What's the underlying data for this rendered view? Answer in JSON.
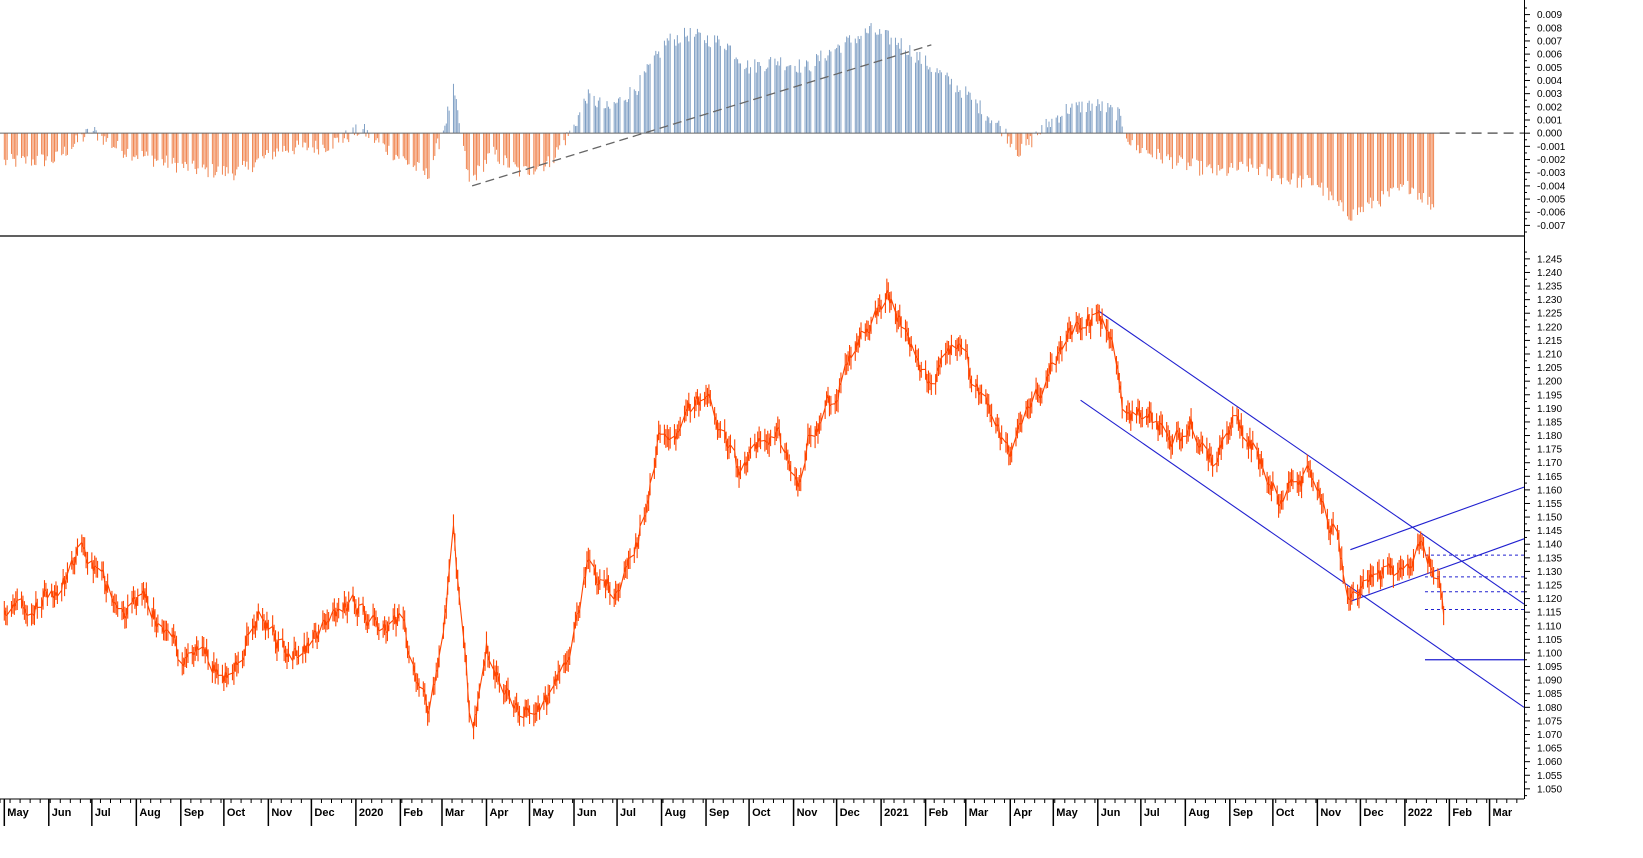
{
  "colors": {
    "price_line": "#ff4500",
    "osc_positive": "#7f9fc4",
    "osc_negative": "#f0844f",
    "channel_lines": "#2020d0",
    "osc_trendline": "#666666",
    "axis": "#000000"
  },
  "chart_data": [
    {
      "type": "bar",
      "panel": "oscillator",
      "y_ticks": [
        "0.009",
        "0.008",
        "0.007",
        "0.006",
        "0.005",
        "0.004",
        "0.003",
        "0.002",
        "0.001",
        "0.000",
        "-0.001",
        "-0.002",
        "-0.003",
        "-0.004",
        "-0.005",
        "-0.006",
        "-0.007"
      ],
      "ylim": [
        -0.0075,
        0.0095
      ],
      "zero_line": "dashed",
      "series": [
        {
          "knots": [
            [
              "2019-05-01",
              -0.0022
            ],
            [
              "2019-06-05",
              -0.002
            ],
            [
              "2019-07-01",
              0.0002
            ],
            [
              "2019-07-20",
              -0.0012
            ],
            [
              "2019-08-20",
              -0.0022
            ],
            [
              "2019-09-15",
              -0.0028
            ],
            [
              "2019-10-10",
              -0.003
            ],
            [
              "2019-11-10",
              -0.0012
            ],
            [
              "2019-12-10",
              -0.001
            ],
            [
              "2019-12-25",
              -0.0003
            ],
            [
              "2020-01-05",
              0.0003
            ],
            [
              "2020-01-20",
              -0.001
            ],
            [
              "2020-02-20",
              -0.0032
            ],
            [
              "2020-03-02",
              0.0003
            ],
            [
              "2020-03-09",
              0.0032
            ],
            [
              "2020-03-13",
              0.0008
            ],
            [
              "2020-03-20",
              -0.0038
            ],
            [
              "2020-04-05",
              -0.0015
            ],
            [
              "2020-04-25",
              -0.003
            ],
            [
              "2020-05-15",
              -0.0022
            ],
            [
              "2020-06-01",
              0.0005
            ],
            [
              "2020-06-10",
              0.0028
            ],
            [
              "2020-06-25",
              0.0018
            ],
            [
              "2020-07-15",
              0.0035
            ],
            [
              "2020-08-05",
              0.007
            ],
            [
              "2020-08-20",
              0.0075
            ],
            [
              "2020-09-15",
              0.0068
            ],
            [
              "2020-10-01",
              0.005
            ],
            [
              "2020-10-20",
              0.0055
            ],
            [
              "2020-11-10",
              0.005
            ],
            [
              "2020-12-01",
              0.0065
            ],
            [
              "2020-12-25",
              0.0078
            ],
            [
              "2021-01-15",
              0.0068
            ],
            [
              "2021-02-05",
              0.005
            ],
            [
              "2021-03-01",
              0.003
            ],
            [
              "2021-03-25",
              0.0005
            ],
            [
              "2021-04-08",
              -0.0015
            ],
            [
              "2021-04-25",
              0.0005
            ],
            [
              "2021-05-10",
              0.0018
            ],
            [
              "2021-05-30",
              0.0022
            ],
            [
              "2021-06-15",
              0.0015
            ],
            [
              "2021-06-25",
              -0.001
            ],
            [
              "2021-07-25",
              -0.0022
            ],
            [
              "2021-08-25",
              -0.003
            ],
            [
              "2021-09-15",
              -0.0025
            ],
            [
              "2021-10-10",
              -0.0035
            ],
            [
              "2021-11-01",
              -0.0038
            ],
            [
              "2021-11-15",
              -0.0055
            ],
            [
              "2021-11-25",
              -0.0062
            ],
            [
              "2021-12-15",
              -0.005
            ],
            [
              "2022-01-05",
              -0.004
            ],
            [
              "2022-01-15",
              -0.005
            ],
            [
              "2022-01-21",
              -0.0055
            ]
          ]
        }
      ],
      "trendlines": [
        {
          "from": [
            "2020-03-22",
            -0.004
          ],
          "to": [
            "2021-02-05",
            0.0067
          ]
        }
      ]
    },
    {
      "type": "line",
      "panel": "price",
      "y_ticks": [
        "1.245",
        "1.240",
        "1.235",
        "1.230",
        "1.225",
        "1.220",
        "1.215",
        "1.210",
        "1.205",
        "1.200",
        "1.195",
        "1.190",
        "1.185",
        "1.180",
        "1.175",
        "1.170",
        "1.165",
        "1.160",
        "1.155",
        "1.150",
        "1.145",
        "1.140",
        "1.135",
        "1.130",
        "1.125",
        "1.120",
        "1.115",
        "1.110",
        "1.105",
        "1.100",
        "1.095",
        "1.090",
        "1.085",
        "1.080",
        "1.075",
        "1.070",
        "1.065",
        "1.060",
        "1.055",
        "1.050"
      ],
      "ylim": [
        1.047,
        1.249
      ],
      "x_labels": [
        "May",
        "Jun",
        "Jul",
        "Aug",
        "Sep",
        "Oct",
        "Nov",
        "Dec",
        "2020",
        "Feb",
        "Mar",
        "Apr",
        "May",
        "Jun",
        "Jul",
        "Aug",
        "Sep",
        "Oct",
        "Nov",
        "Dec",
        "2021",
        "Feb",
        "Mar",
        "Apr",
        "May",
        "Jun",
        "Jul",
        "Aug",
        "Sep",
        "Oct",
        "Nov",
        "Dec",
        "2022",
        "Feb",
        "Mar"
      ],
      "x_label_dates": [
        "2019-05-01",
        "2019-06-01",
        "2019-07-01",
        "2019-08-01",
        "2019-09-01",
        "2019-10-01",
        "2019-11-01",
        "2019-12-01",
        "2020-01-01",
        "2020-02-01",
        "2020-03-01",
        "2020-04-01",
        "2020-05-01",
        "2020-06-01",
        "2020-07-01",
        "2020-08-01",
        "2020-09-01",
        "2020-10-01",
        "2020-11-01",
        "2020-12-01",
        "2021-01-01",
        "2021-02-01",
        "2021-03-01",
        "2021-04-01",
        "2021-05-01",
        "2021-06-01",
        "2021-07-01",
        "2021-08-01",
        "2021-09-01",
        "2021-10-01",
        "2021-11-01",
        "2021-12-01",
        "2022-01-01",
        "2022-02-01",
        "2022-03-01"
      ],
      "xlim": [
        "2019-04-28",
        "2022-03-25"
      ],
      "series": [
        {
          "knots": [
            [
              "2019-05-01",
              1.118
            ],
            [
              "2019-05-20",
              1.12
            ],
            [
              "2019-06-05",
              1.123
            ],
            [
              "2019-06-25",
              1.137
            ],
            [
              "2019-07-10",
              1.125
            ],
            [
              "2019-07-25",
              1.117
            ],
            [
              "2019-08-05",
              1.12
            ],
            [
              "2019-08-20",
              1.11
            ],
            [
              "2019-09-03",
              1.096
            ],
            [
              "2019-09-15",
              1.102
            ],
            [
              "2019-10-01",
              1.092
            ],
            [
              "2019-10-15",
              1.103
            ],
            [
              "2019-10-25",
              1.113
            ],
            [
              "2019-11-10",
              1.103
            ],
            [
              "2019-11-25",
              1.1
            ],
            [
              "2019-12-10",
              1.11
            ],
            [
              "2019-12-31",
              1.12
            ],
            [
              "2020-01-15",
              1.112
            ],
            [
              "2020-02-01",
              1.11
            ],
            [
              "2020-02-10",
              1.095
            ],
            [
              "2020-02-20",
              1.08
            ],
            [
              "2020-03-01",
              1.103
            ],
            [
              "2020-03-09",
              1.145
            ],
            [
              "2020-03-14",
              1.115
            ],
            [
              "2020-03-22",
              1.068
            ],
            [
              "2020-04-01",
              1.103
            ],
            [
              "2020-04-10",
              1.087
            ],
            [
              "2020-04-25",
              1.078
            ],
            [
              "2020-05-06",
              1.08
            ],
            [
              "2020-05-15",
              1.082
            ],
            [
              "2020-05-27",
              1.1
            ],
            [
              "2020-06-10",
              1.132
            ],
            [
              "2020-06-20",
              1.125
            ],
            [
              "2020-07-01",
              1.124
            ],
            [
              "2020-07-15",
              1.14
            ],
            [
              "2020-07-31",
              1.18
            ],
            [
              "2020-08-15",
              1.185
            ],
            [
              "2020-09-01",
              1.195
            ],
            [
              "2020-09-15",
              1.18
            ],
            [
              "2020-09-25",
              1.165
            ],
            [
              "2020-10-05",
              1.175
            ],
            [
              "2020-10-20",
              1.18
            ],
            [
              "2020-11-04",
              1.165
            ],
            [
              "2020-11-12",
              1.18
            ],
            [
              "2020-12-01",
              1.195
            ],
            [
              "2020-12-15",
              1.215
            ],
            [
              "2021-01-06",
              1.232
            ],
            [
              "2021-01-20",
              1.215
            ],
            [
              "2021-02-05",
              1.198
            ],
            [
              "2021-02-25",
              1.215
            ],
            [
              "2021-03-10",
              1.195
            ],
            [
              "2021-03-31",
              1.172
            ],
            [
              "2021-04-15",
              1.195
            ],
            [
              "2021-05-01",
              1.205
            ],
            [
              "2021-05-25",
              1.225
            ],
            [
              "2021-06-10",
              1.218
            ],
            [
              "2021-06-18",
              1.19
            ],
            [
              "2021-07-05",
              1.185
            ],
            [
              "2021-07-20",
              1.178
            ],
            [
              "2021-08-05",
              1.185
            ],
            [
              "2021-08-20",
              1.17
            ],
            [
              "2021-09-03",
              1.188
            ],
            [
              "2021-09-20",
              1.173
            ],
            [
              "2021-10-05",
              1.157
            ],
            [
              "2021-10-25",
              1.165
            ],
            [
              "2021-11-05",
              1.157
            ],
            [
              "2021-11-15",
              1.14
            ],
            [
              "2021-11-24",
              1.12
            ],
            [
              "2021-12-05",
              1.13
            ],
            [
              "2021-12-20",
              1.128
            ],
            [
              "2022-01-05",
              1.131
            ],
            [
              "2022-01-13",
              1.145
            ],
            [
              "2022-01-20",
              1.133
            ],
            [
              "2022-01-25",
              1.128
            ],
            [
              "2022-01-28",
              1.115
            ]
          ]
        }
      ],
      "channel_lines": [
        {
          "from": [
            "2021-06-01",
            1.226
          ],
          "to": [
            "2022-03-25",
            1.118
          ]
        },
        {
          "from": [
            "2021-05-20",
            1.193
          ],
          "to": [
            "2022-03-25",
            1.08
          ]
        },
        {
          "from": [
            "2021-11-24",
            1.138
          ],
          "to": [
            "2022-03-25",
            1.161
          ]
        },
        {
          "from": [
            "2021-11-24",
            1.119
          ],
          "to": [
            "2022-03-25",
            1.142
          ]
        }
      ],
      "dotted_levels": [
        {
          "y": 1.136,
          "from": "2022-01-15",
          "to": "2022-03-25"
        },
        {
          "y": 1.128,
          "from": "2022-01-15",
          "to": "2022-03-25"
        },
        {
          "y": 1.1225,
          "from": "2022-01-15",
          "to": "2022-03-25"
        },
        {
          "y": 1.116,
          "from": "2022-01-15",
          "to": "2022-03-25"
        }
      ],
      "solid_levels": [
        {
          "y": 1.0975,
          "from": "2022-01-15",
          "to": "2022-03-25"
        }
      ]
    }
  ]
}
